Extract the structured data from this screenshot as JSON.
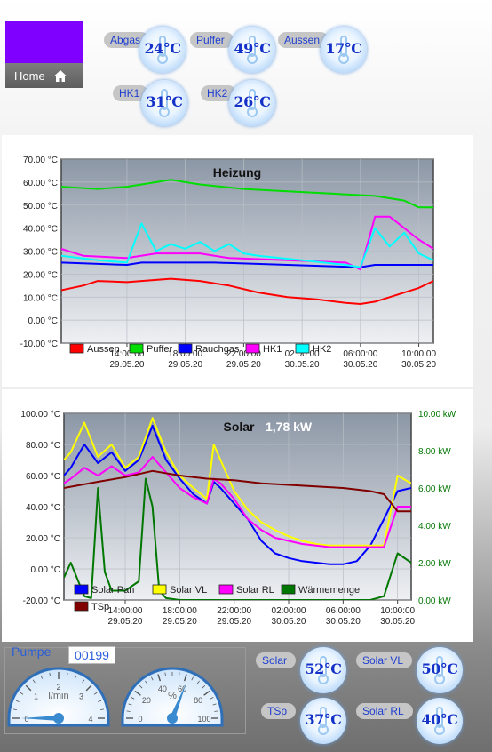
{
  "nav": {
    "home_label": "Home"
  },
  "sensors_top": [
    {
      "label": "Abgas",
      "value": "24°C"
    },
    {
      "label": "Puffer",
      "value": "49°C"
    },
    {
      "label": "Aussen",
      "value": "17°C"
    },
    {
      "label": "HK1",
      "value": "31°C"
    },
    {
      "label": "HK2",
      "value": "26°C"
    }
  ],
  "sensors_bottom": [
    {
      "label": "Solar",
      "value": "52°C"
    },
    {
      "label": "Solar VL",
      "value": "50°C"
    },
    {
      "label": "TSp",
      "value": "37°C"
    },
    {
      "label": "Solar RL",
      "value": "40°C"
    }
  ],
  "pump": {
    "title": "Pumpe",
    "counter": "00199",
    "flow_gauge": {
      "unit": "l/min",
      "ticks": [
        "0",
        "1",
        "2",
        "3",
        "4"
      ],
      "min": 0,
      "max": 4,
      "value": 0
    },
    "percent_gauge": {
      "unit": "%",
      "ticks": [
        "0",
        "20",
        "40",
        "60",
        "80",
        "100"
      ],
      "min": 0,
      "max": 100,
      "value": 62
    }
  },
  "chart_data": [
    {
      "type": "line",
      "title": "Heizung",
      "y_ticks": [
        "70.00 °C",
        "60.00 °C",
        "50.00 °C",
        "40.00 °C",
        "30.00 °C",
        "20.00 °C",
        "10.00 °C",
        "0.00 °C",
        "-10.00 °C"
      ],
      "ylim": [
        -10,
        70
      ],
      "x_ticks": [
        [
          "14:00:00",
          "29.05.20"
        ],
        [
          "18:00:00",
          "29.05.20"
        ],
        [
          "22:00:00",
          "29.05.20"
        ],
        [
          "02:00:00",
          "30.05.20"
        ],
        [
          "06:00:00",
          "30.05.20"
        ],
        [
          "10:00:00",
          "30.05.20"
        ]
      ],
      "x_hours": [
        14,
        18,
        22,
        26,
        30,
        34
      ],
      "xlim_hours": [
        9.5,
        35
      ],
      "legend": "bottom-left",
      "series": [
        {
          "name": "Aussen",
          "color": "#ff0000",
          "points": [
            [
              9.5,
              13
            ],
            [
              11,
              15
            ],
            [
              12,
              17
            ],
            [
              14,
              16.5
            ],
            [
              17,
              18
            ],
            [
              19,
              17
            ],
            [
              21,
              15
            ],
            [
              23,
              12
            ],
            [
              25,
              10
            ],
            [
              27,
              9
            ],
            [
              29,
              7.5
            ],
            [
              30,
              7
            ],
            [
              31,
              8
            ],
            [
              32,
              10
            ],
            [
              34,
              14
            ],
            [
              35,
              17
            ]
          ]
        },
        {
          "name": "Puffer",
          "color": "#00dd00",
          "points": [
            [
              9.5,
              58
            ],
            [
              12,
              57
            ],
            [
              14,
              58
            ],
            [
              15,
              59
            ],
            [
              17,
              61
            ],
            [
              19,
              59
            ],
            [
              22,
              57
            ],
            [
              25,
              56
            ],
            [
              28,
              55
            ],
            [
              31,
              54
            ],
            [
              33,
              52
            ],
            [
              34,
              49
            ],
            [
              35,
              49
            ]
          ]
        },
        {
          "name": "Rauchgas",
          "color": "#0000ff",
          "points": [
            [
              9.5,
              25
            ],
            [
              14,
              24
            ],
            [
              15,
              25
            ],
            [
              20,
              25
            ],
            [
              25,
              24
            ],
            [
              30,
              23
            ],
            [
              31,
              24
            ],
            [
              35,
              24
            ]
          ]
        },
        {
          "name": "HK1",
          "color": "#ff00ff",
          "points": [
            [
              9.5,
              31
            ],
            [
              11,
              28
            ],
            [
              14,
              27
            ],
            [
              16,
              29
            ],
            [
              19,
              29
            ],
            [
              21,
              27
            ],
            [
              25,
              26
            ],
            [
              29,
              25
            ],
            [
              30,
              22
            ],
            [
              31,
              45
            ],
            [
              32,
              45
            ],
            [
              33,
              40
            ],
            [
              34,
              35
            ],
            [
              35,
              31
            ]
          ]
        },
        {
          "name": "HK2",
          "color": "#00ffff",
          "points": [
            [
              9.5,
              28
            ],
            [
              12,
              26
            ],
            [
              14,
              25
            ],
            [
              15,
              42
            ],
            [
              16,
              30
            ],
            [
              17,
              33
            ],
            [
              18,
              31
            ],
            [
              19,
              34
            ],
            [
              20,
              30
            ],
            [
              21,
              33
            ],
            [
              22,
              29
            ],
            [
              23,
              28
            ],
            [
              26,
              26
            ],
            [
              29,
              24
            ],
            [
              30,
              23
            ],
            [
              31,
              40
            ],
            [
              32,
              32
            ],
            [
              33,
              38
            ],
            [
              34,
              29
            ],
            [
              35,
              26
            ]
          ]
        }
      ]
    },
    {
      "type": "line",
      "title": "Solar",
      "subtitle": "1,78 kW",
      "y_ticks": [
        "100.00 °C",
        "80.00 °C",
        "60.00 °C",
        "40.00 °C",
        "20.00 °C",
        "0.00 °C",
        "-20.00 °C"
      ],
      "ylim": [
        -20,
        100
      ],
      "y2_ticks": [
        "10.00 kW",
        "8.00 kW",
        "6.00 kW",
        "4.00 kW",
        "2.00 kW",
        "0.00 kW"
      ],
      "y2lim": [
        0,
        10
      ],
      "x_ticks": [
        [
          "14:00:00",
          "29.05.20"
        ],
        [
          "18:00:00",
          "29.05.20"
        ],
        [
          "22:00:00",
          "29.05.20"
        ],
        [
          "02:00:00",
          "30.05.20"
        ],
        [
          "06:00:00",
          "30.05.20"
        ],
        [
          "10:00:00",
          "30.05.20"
        ]
      ],
      "x_hours": [
        14,
        18,
        22,
        26,
        30,
        34
      ],
      "xlim_hours": [
        9.5,
        35
      ],
      "legend": "bottom-left",
      "series": [
        {
          "name": "Solar Pan",
          "color": "#0000ff",
          "axis": "left",
          "points": [
            [
              9.5,
              60
            ],
            [
              10,
              65
            ],
            [
              11,
              80
            ],
            [
              12,
              68
            ],
            [
              13,
              75
            ],
            [
              14,
              63
            ],
            [
              15,
              70
            ],
            [
              16,
              92
            ],
            [
              17,
              70
            ],
            [
              18,
              58
            ],
            [
              19,
              48
            ],
            [
              20,
              42
            ],
            [
              20.5,
              56
            ],
            [
              21,
              52
            ],
            [
              22,
              42
            ],
            [
              23,
              32
            ],
            [
              24,
              18
            ],
            [
              25,
              10
            ],
            [
              26,
              7
            ],
            [
              27,
              5
            ],
            [
              28,
              4
            ],
            [
              29,
              3
            ],
            [
              30,
              3
            ],
            [
              31,
              5
            ],
            [
              32,
              15
            ],
            [
              33,
              32
            ],
            [
              34,
              50
            ],
            [
              35,
              52
            ]
          ]
        },
        {
          "name": "Solar VL",
          "color": "#ffff00",
          "axis": "left",
          "points": [
            [
              9.5,
              70
            ],
            [
              10,
              75
            ],
            [
              11,
              94
            ],
            [
              12,
              72
            ],
            [
              13,
              80
            ],
            [
              14,
              65
            ],
            [
              15,
              72
            ],
            [
              16,
              97
            ],
            [
              17,
              75
            ],
            [
              18,
              60
            ],
            [
              19,
              52
            ],
            [
              20,
              45
            ],
            [
              20.5,
              80
            ],
            [
              21,
              70
            ],
            [
              22,
              50
            ],
            [
              23,
              38
            ],
            [
              24,
              30
            ],
            [
              25,
              25
            ],
            [
              26,
              21
            ],
            [
              27,
              18
            ],
            [
              28,
              16
            ],
            [
              29,
              15
            ],
            [
              31,
              15
            ],
            [
              33,
              15
            ],
            [
              34,
              60
            ],
            [
              35,
              55
            ]
          ]
        },
        {
          "name": "Solar RL",
          "color": "#ff00ff",
          "axis": "left",
          "points": [
            [
              9.5,
              55
            ],
            [
              10,
              58
            ],
            [
              11,
              65
            ],
            [
              12,
              60
            ],
            [
              13,
              66
            ],
            [
              14,
              60
            ],
            [
              15,
              62
            ],
            [
              16,
              72
            ],
            [
              17,
              62
            ],
            [
              18,
              52
            ],
            [
              19,
              46
            ],
            [
              20,
              42
            ],
            [
              20.5,
              58
            ],
            [
              21,
              55
            ],
            [
              22,
              45
            ],
            [
              23,
              32
            ],
            [
              24,
              25
            ],
            [
              25,
              20
            ],
            [
              26,
              18
            ],
            [
              27,
              16
            ],
            [
              28,
              15
            ],
            [
              29,
              14
            ],
            [
              31,
              14
            ],
            [
              33,
              14
            ],
            [
              34,
              40
            ],
            [
              35,
              40
            ]
          ]
        },
        {
          "name": "Wärmemenge",
          "color": "#007700",
          "axis": "right",
          "points": [
            [
              9.5,
              1.2
            ],
            [
              10,
              2.0
            ],
            [
              11,
              0.2
            ],
            [
              11.5,
              0.1
            ],
            [
              12,
              6.0
            ],
            [
              12.5,
              1.5
            ],
            [
              13,
              0.5
            ],
            [
              14,
              0.5
            ],
            [
              15,
              1.0
            ],
            [
              15.5,
              6.5
            ],
            [
              16,
              5.0
            ],
            [
              16.5,
              0.5
            ],
            [
              17,
              0.1
            ],
            [
              18,
              0.0
            ],
            [
              25,
              0.0
            ],
            [
              32,
              0.0
            ],
            [
              33,
              0.2
            ],
            [
              34,
              2.5
            ],
            [
              35,
              2.0
            ]
          ]
        },
        {
          "name": "TSp",
          "color": "#800000",
          "axis": "left",
          "points": [
            [
              9.5,
              52
            ],
            [
              12,
              56
            ],
            [
              14,
              59
            ],
            [
              16,
              63
            ],
            [
              18,
              60
            ],
            [
              20,
              58
            ],
            [
              22,
              57
            ],
            [
              24,
              55
            ],
            [
              26,
              54
            ],
            [
              28,
              53
            ],
            [
              30,
              52
            ],
            [
              32,
              50
            ],
            [
              33,
              48
            ],
            [
              34,
              37
            ],
            [
              35,
              37
            ]
          ]
        }
      ]
    }
  ]
}
